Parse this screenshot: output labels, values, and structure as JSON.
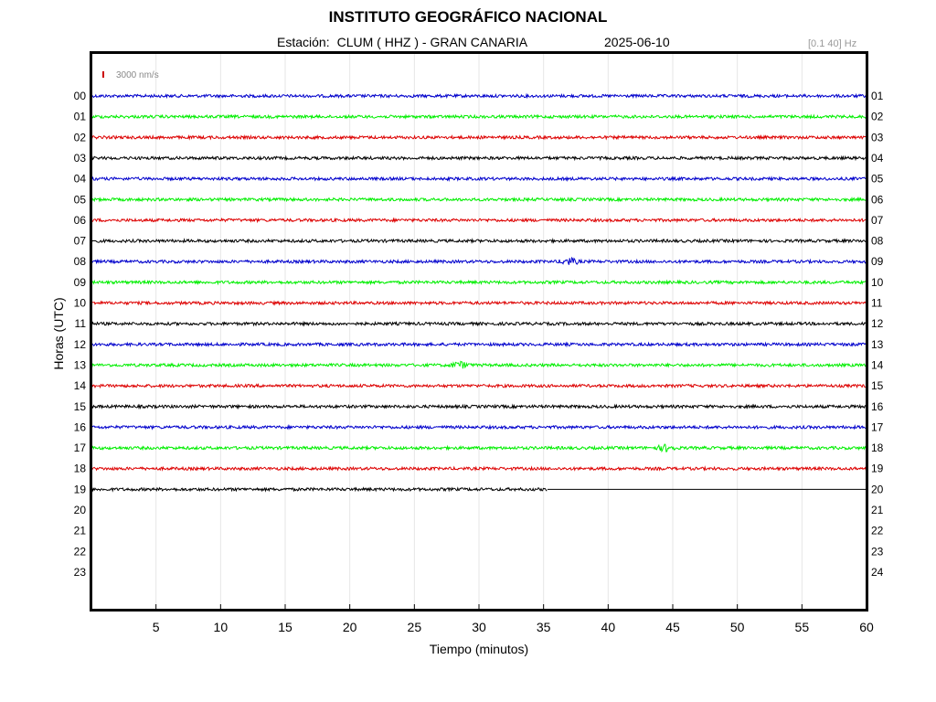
{
  "title": "INSTITUTO GEOGRÁFICO NACIONAL",
  "station_label": "Estación:",
  "station_value": "CLUM ( HHZ ) - GRAN CANARIA",
  "date": "2025-06-10",
  "filter": "[0.1 40] Hz",
  "scale_label": "3000 nm/s",
  "colors": {
    "blue": "#0000cc",
    "green": "#00ee00",
    "red": "#dd0000",
    "black": "#000000",
    "scale": "#cc0000",
    "grid": "#e6e6e6",
    "filter": "#999999"
  },
  "chart_data": {
    "type": "line",
    "xlabel": "Tiempo (minutos)",
    "ylabel": "Horas (UTC)",
    "xlim": [
      0,
      60
    ],
    "x_ticks": [
      "5",
      "10",
      "15",
      "20",
      "25",
      "30",
      "35",
      "40",
      "45",
      "50",
      "55",
      "60"
    ],
    "left_labels": [
      "00",
      "01",
      "02",
      "03",
      "04",
      "05",
      "06",
      "07",
      "08",
      "09",
      "10",
      "11",
      "12",
      "13",
      "14",
      "15",
      "16",
      "17",
      "18",
      "19",
      "20",
      "21",
      "22",
      "23"
    ],
    "right_labels": [
      "01",
      "02",
      "03",
      "04",
      "05",
      "06",
      "07",
      "08",
      "09",
      "10",
      "11",
      "12",
      "13",
      "14",
      "15",
      "16",
      "17",
      "18",
      "19",
      "20",
      "21",
      "22",
      "23",
      "24"
    ],
    "color_cycle": [
      "blue",
      "green",
      "red",
      "black"
    ],
    "recorded_hours": 20,
    "last_trace_end_minute": 35.3,
    "events": [
      {
        "hour": "13",
        "minute": 28.5
      },
      {
        "hour": "08",
        "minute": 37
      },
      {
        "hour": "17",
        "minute": 44.5
      }
    ]
  }
}
